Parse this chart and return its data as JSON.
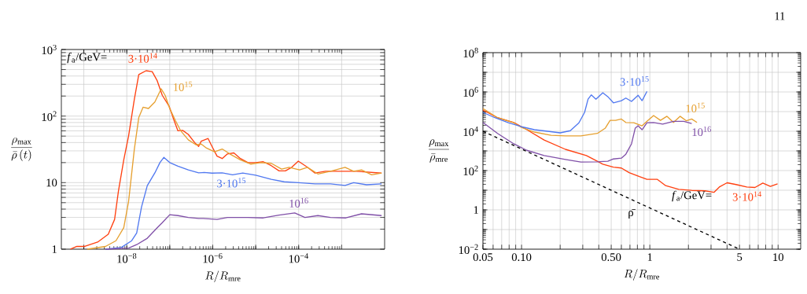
{
  "chart_data": [
    {
      "type": "line",
      "log": "xy",
      "grid": true,
      "xlabel": "R/R_{\\mathrm{mre}}",
      "ylabel": "\\frac{\\rho_{\\mathrm{max}}}{\\bar{\\rho}\\,(t)}",
      "xlim": [
        3e-10,
        0.01
      ],
      "ylim": [
        1,
        1000
      ],
      "xticks": [
        {
          "value": 1e-09,
          "label": null
        },
        {
          "value": 1e-08,
          "label": "10$^{−8}$"
        },
        {
          "value": 1e-07,
          "label": null
        },
        {
          "value": 1e-06,
          "label": "10$^{−6}$"
        },
        {
          "value": 1e-05,
          "label": null
        },
        {
          "value": 0.0001,
          "label": "10$^{−4}$"
        },
        {
          "value": 0.001,
          "label": null
        }
      ],
      "yticks": [
        1,
        {
          "value": 2,
          "label": null
        },
        {
          "value": 3,
          "label": null
        },
        {
          "value": 4,
          "label": null
        },
        {
          "value": 5,
          "label": null
        },
        {
          "value": 6,
          "label": null
        },
        {
          "value": 7,
          "label": null
        },
        {
          "value": 8,
          "label": null
        },
        {
          "value": 9,
          "label": null
        },
        10,
        {
          "value": 20,
          "label": null
        },
        {
          "value": 30,
          "label": null
        },
        {
          "value": 40,
          "label": null
        },
        {
          "value": 50,
          "label": null
        },
        {
          "value": 60,
          "label": null
        },
        {
          "value": 70,
          "label": null
        },
        {
          "value": 80,
          "label": null
        },
        {
          "value": 90,
          "label": null
        },
        {
          "value": 100,
          "label": "10$^{2}$"
        },
        {
          "value": 200,
          "label": null
        },
        {
          "value": 300,
          "label": null
        },
        {
          "value": 400,
          "label": null
        },
        {
          "value": 500,
          "label": null
        },
        {
          "value": 600,
          "label": null
        },
        {
          "value": 700,
          "label": null
        },
        {
          "value": 800,
          "label": null
        },
        {
          "value": 900,
          "label": null
        },
        {
          "value": 1000,
          "label": "10$^{3}$"
        }
      ],
      "annotations": [
        "*f*$_{a}$/GeV="
      ],
      "series": [
        {
          "name": "3·10$^{14}$",
          "color": "#ff4010",
          "x": [
            4.9e-10,
            6.9e-10,
            1.05e-09,
            2.1e-09,
            3.7e-09,
            5.2e-09,
            6.4e-09,
            8.5e-09,
            1.1e-08,
            1.5e-08,
            1.9e-08,
            2.8e-08,
            3.9e-08,
            5.1e-08,
            6.7e-08,
            9.6e-08,
            1.26e-07,
            1.55e-07,
            2e-07,
            2.7e-07,
            3.8e-07,
            4.7e-07,
            5.4e-07,
            7.8e-07,
            9.6e-07,
            1.26e-06,
            1.66e-06,
            2.2e-06,
            3.1e-06,
            4.4e-06,
            6.6e-06,
            1e-05,
            1.5e-05,
            2.3e-05,
            3.5e-05,
            4.9e-05,
            6.9e-05,
            9.8e-05,
            0.00016,
            0.00024,
            0.00042,
            0.00095,
            0.0022,
            0.0085
          ],
          "values": [
            1.0,
            1.1,
            1.1,
            1.28,
            1.68,
            2.8,
            7.5,
            22,
            50,
            180,
            420,
            480,
            465,
            340,
            205,
            142,
            86,
            60,
            61,
            53,
            40,
            35,
            42,
            46,
            35,
            25,
            23,
            27,
            28,
            23,
            20,
            20,
            20.6,
            18,
            15,
            15,
            17,
            21,
            17,
            13.9,
            14.8,
            14.8,
            14.8,
            13.9
          ]
        },
        {
          "name": "10$^{15}$",
          "color": "#e6a030",
          "x": [
            1.2e-09,
            3.2e-09,
            5.6e-09,
            8.5e-09,
            1.1e-08,
            1.5e-08,
            1.9e-08,
            2.4e-08,
            3.2e-08,
            4.5e-08,
            6.3e-08,
            7.8e-08,
            1e-07,
            1.35e-07,
            1.8e-07,
            2.7e-07,
            4.1e-07,
            5.4e-07,
            7.2e-07,
            1.1e-06,
            1.66e-06,
            2.5e-06,
            4.4e-06,
            7.6e-06,
            1.3e-05,
            2.3e-05,
            4e-05,
            6e-05,
            0.000105,
            0.00016,
            0.00028,
            0.00055,
            0.0012,
            0.0019,
            0.0029,
            0.005,
            0.0085
          ],
          "values": [
            1.0,
            1.1,
            1.34,
            2.1,
            5.2,
            32,
            95,
            136,
            130,
            163,
            257,
            205,
            130,
            86,
            60,
            44,
            37,
            38,
            33,
            29,
            32,
            27,
            22,
            19,
            20,
            19.5,
            16,
            17,
            15.5,
            17,
            13.5,
            14.8,
            17,
            14.8,
            15.5,
            13.1,
            13.9
          ]
        },
        {
          "name": "3·10$^{15}$",
          "color": "#5078f0",
          "x": [
            3.2e-09,
            7.4e-09,
            1.3e-08,
            1.7e-08,
            2.2e-08,
            3e-08,
            4.5e-08,
            5.9e-08,
            7.3e-08,
            1e-07,
            1.55e-07,
            2.7e-07,
            4.7e-07,
            6.3e-07,
            9.6e-07,
            1.66e-06,
            2.9e-06,
            5e-06,
            1e-05,
            2.3e-05,
            4.6e-05,
            9.8e-05,
            0.00024,
            0.00055,
            0.0012,
            0.0019,
            0.0038,
            0.0085
          ],
          "values": [
            1.0,
            1.06,
            1.34,
            1.75,
            4.3,
            9.0,
            14,
            20,
            24,
            20,
            17.7,
            15.5,
            14,
            14.2,
            13.9,
            14,
            13.1,
            13.9,
            12.9,
            11.2,
            10.3,
            10,
            9.6,
            9.6,
            9.1,
            10,
            9.3,
            9.6
          ]
        },
        {
          "name": "10$^{16}$",
          "color": "#8050a8",
          "x": [
            3.2e-09,
            1.1e-08,
            1.7e-08,
            3e-08,
            5.1e-08,
            6.7e-08,
            1e-07,
            1.55e-07,
            2.7e-07,
            4.7e-07,
            6e-07,
            1.26e-06,
            2.2e-06,
            6.6e-06,
            1.5e-05,
            3.5e-05,
            8.1e-05,
            0.00014,
            0.00028,
            0.00055,
            0.00125,
            0.0029,
            0.0085
          ],
          "values": [
            1.0,
            1.04,
            1.17,
            1.46,
            2.1,
            2.5,
            3.3,
            3.2,
            3.0,
            2.9,
            2.9,
            2.8,
            3.0,
            3.0,
            2.95,
            3.25,
            3.5,
            3.0,
            3.2,
            3.0,
            2.95,
            3.4,
            3.2
          ]
        }
      ]
    },
    {
      "type": "line",
      "log": "xy",
      "grid": true,
      "xlabel": "R/R_{\\mathrm{mre}}",
      "ylabel": "\\frac{\\rho_{\\mathrm{max}}}{\\bar{\\rho}_{\\mathrm{mre}}}",
      "xlim": [
        0.05,
        15
      ],
      "ylim": [
        0.01,
        100000000.0
      ],
      "xticks": [
        0.05,
        {
          "value": 0.06,
          "label": null
        },
        {
          "value": 0.07,
          "label": null
        },
        {
          "value": 0.08,
          "label": null
        },
        {
          "value": 0.09,
          "label": null
        },
        {
          "value": 0.1,
          "label": "0.10"
        },
        {
          "value": 0.2,
          "label": null
        },
        {
          "value": 0.3,
          "label": null
        },
        {
          "value": 0.4,
          "label": null
        },
        {
          "value": 0.5,
          "label": "0.50"
        },
        {
          "value": 0.6,
          "label": null
        },
        {
          "value": 0.7,
          "label": null
        },
        {
          "value": 0.8,
          "label": null
        },
        {
          "value": 0.9,
          "label": null
        },
        1,
        {
          "value": 2,
          "label": null
        },
        {
          "value": 3,
          "label": null
        },
        {
          "value": 4,
          "label": null
        },
        5,
        {
          "value": 6,
          "label": null
        },
        {
          "value": 7,
          "label": null
        },
        {
          "value": 8,
          "label": null
        },
        {
          "value": 9,
          "label": null
        },
        10
      ],
      "yticks": [
        {
          "value": 0.01,
          "label": "10$^{−2}$"
        },
        {
          "value": 0.1,
          "label": null
        },
        1,
        {
          "value": 10,
          "label": null
        },
        {
          "value": 100,
          "label": "10$^{2}$"
        },
        {
          "value": 1000,
          "label": null
        },
        {
          "value": 10000.0,
          "label": "10$^{4}$"
        },
        {
          "value": 100000.0,
          "label": null
        },
        {
          "value": 1000000.0,
          "label": "10$^{6}$"
        },
        {
          "value": 10000000.0,
          "label": null
        },
        {
          "value": 100000000.0,
          "label": "10$^{8}$"
        }
      ],
      "annotations": [
        "*f*$_{a}$/GeV=",
        "11"
      ],
      "series": [
        {
          "name": "3·10$^{14}$",
          "color": "#ff4010",
          "x": [
            0.05,
            0.065,
            0.087,
            0.11,
            0.15,
            0.22,
            0.32,
            0.39,
            0.43,
            0.52,
            0.6,
            0.69,
            0.83,
            0.95,
            1.14,
            1.33,
            1.68,
            2.12,
            2.69,
            3.16,
            3.48,
            4.0,
            4.7,
            5.7,
            6.6,
            7.6,
            8.7,
            9.9
          ],
          "values": [
            120000.0,
            49000.0,
            28000.0,
            12000.0,
            3600,
            1200,
            580,
            300,
            210,
            150,
            135,
            78,
            49,
            36,
            36,
            17,
            11,
            9.8,
            9.3,
            7.8,
            14.5,
            24,
            19.5,
            14.5,
            13.8,
            23,
            15.8,
            21
          ]
        },
        {
          "name": "10$^{15}$",
          "color": "#e6a030",
          "x": [
            0.05,
            0.065,
            0.087,
            0.1,
            0.126,
            0.17,
            0.22,
            0.29,
            0.39,
            0.45,
            0.49,
            0.54,
            0.6,
            0.65,
            0.75,
            0.87,
            0.95,
            1.07,
            1.21,
            1.36,
            1.53,
            1.72,
            1.93,
            2.12,
            2.33
          ],
          "values": [
            145000.0,
            49000.0,
            27000.0,
            15500.0,
            9100,
            6200,
            5800,
            5800,
            7800,
            14500.0,
            36000.0,
            36000.0,
            42000.0,
            28000.0,
            27000.0,
            19000.0,
            32000.0,
            63000.0,
            36000.0,
            58000.0,
            28000.0,
            58000.0,
            34000.0,
            42000.0,
            28000.0
          ]
        },
        {
          "name": "3·10$^{15}$",
          "color": "#5078f0",
          "x": [
            0.05,
            0.062,
            0.079,
            0.1,
            0.126,
            0.16,
            0.2,
            0.24,
            0.28,
            0.31,
            0.33,
            0.35,
            0.38,
            0.43,
            0.47,
            0.52,
            0.6,
            0.65,
            0.72,
            0.81,
            0.87,
            0.95
          ],
          "values": [
            91000.0,
            49000.0,
            27000.0,
            17000.0,
            12000.0,
            10000.0,
            8300,
            10700.0,
            27000.0,
            91000.0,
            430000.0,
            710000.0,
            430000.0,
            910000.0,
            580000.0,
            280000.0,
            360000.0,
            490000.0,
            330000.0,
            680000.0,
            360000.0,
            1070000.0
          ]
        },
        {
          "name": "10$^{16}$",
          "color": "#8050a8",
          "x": [
            0.05,
            0.065,
            0.087,
            0.11,
            0.15,
            0.22,
            0.29,
            0.39,
            0.47,
            0.52,
            0.6,
            0.65,
            0.72,
            0.77,
            0.81,
            0.87,
            0.95,
            1.07,
            1.26,
            1.53,
            1.84,
            2.12
          ],
          "values": [
            28000.0,
            7800,
            2300,
            1070,
            580,
            365,
            270,
            280,
            300,
            390,
            430,
            680,
            2300,
            14500.0,
            19000.0,
            12000.0,
            27000.0,
            28000.0,
            23000.0,
            32000.0,
            32000.0,
            25000.0
          ]
        },
        {
          "name": "ρ̄",
          "color": "#000000",
          "line_style": "dashed",
          "x": [
            0.05,
            5
          ],
          "values": [
            10000,
            0.01
          ]
        }
      ]
    }
  ]
}
